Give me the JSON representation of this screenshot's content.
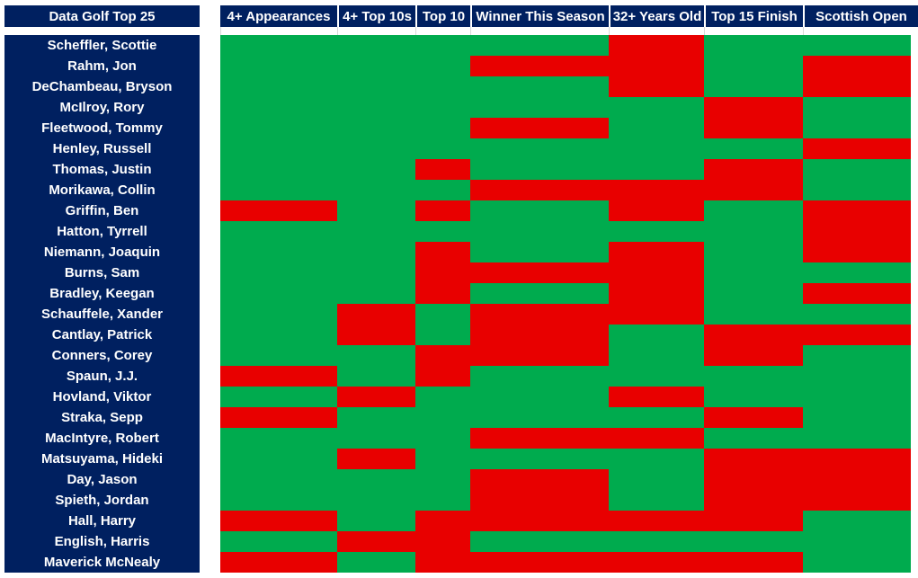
{
  "chart_data": {
    "type": "heatmap",
    "title": "Data Golf Top 25",
    "columns": [
      "4+ Appearances",
      "4+ Top 10s",
      "Top 10",
      "Winner This Season",
      "32+ Years Old",
      "Top 15 Finish",
      "Scottish Open"
    ],
    "rows": [
      "Scheffler, Scottie",
      "Rahm, Jon",
      "DeChambeau, Bryson",
      "McIlroy, Rory",
      "Fleetwood, Tommy",
      "Henley, Russell",
      "Thomas, Justin",
      "Morikawa, Collin",
      "Griffin, Ben",
      "Hatton, Tyrrell",
      "Niemann, Joaquin",
      "Burns, Sam",
      "Bradley, Keegan",
      "Schauffele, Xander",
      "Cantlay, Patrick",
      "Conners, Corey",
      "Spaun, J.J.",
      "Hovland, Viktor",
      "Straka, Sepp",
      "MacIntyre, Robert",
      "Matsuyama, Hideki",
      "Day, Jason",
      "Spieth, Jordan",
      "Hall, Harry",
      "English, Harris",
      "Maverick McNealy"
    ],
    "legend": {
      "0": "meets criterion (green)",
      "1": "fails criterion (red)"
    },
    "colors": {
      "pass": "#00AB4E",
      "fail": "#E80000",
      "header": "#002060"
    },
    "values": [
      [
        0,
        0,
        0,
        0,
        1,
        0,
        0
      ],
      [
        0,
        0,
        0,
        1,
        1,
        0,
        1
      ],
      [
        0,
        0,
        0,
        0,
        1,
        0,
        1
      ],
      [
        0,
        0,
        0,
        0,
        0,
        1,
        0
      ],
      [
        0,
        0,
        0,
        1,
        0,
        1,
        0
      ],
      [
        0,
        0,
        0,
        0,
        0,
        0,
        1
      ],
      [
        0,
        0,
        1,
        0,
        0,
        1,
        0
      ],
      [
        0,
        0,
        0,
        1,
        1,
        1,
        0
      ],
      [
        1,
        0,
        1,
        0,
        1,
        0,
        1
      ],
      [
        0,
        0,
        0,
        0,
        0,
        0,
        1
      ],
      [
        0,
        0,
        1,
        0,
        1,
        0,
        1
      ],
      [
        0,
        0,
        1,
        1,
        1,
        0,
        0
      ],
      [
        0,
        0,
        1,
        0,
        1,
        0,
        1
      ],
      [
        0,
        1,
        0,
        1,
        1,
        0,
        0
      ],
      [
        0,
        1,
        0,
        1,
        0,
        1,
        1
      ],
      [
        0,
        0,
        1,
        1,
        0,
        1,
        0
      ],
      [
        1,
        0,
        1,
        0,
        0,
        0,
        0
      ],
      [
        0,
        1,
        0,
        0,
        1,
        0,
        0
      ],
      [
        1,
        0,
        0,
        0,
        0,
        1,
        0
      ],
      [
        0,
        0,
        0,
        1,
        1,
        0,
        0
      ],
      [
        0,
        1,
        0,
        0,
        0,
        1,
        1
      ],
      [
        0,
        0,
        0,
        1,
        0,
        1,
        1
      ],
      [
        0,
        0,
        0,
        1,
        0,
        1,
        1
      ],
      [
        1,
        0,
        1,
        1,
        1,
        1,
        0
      ],
      [
        0,
        1,
        1,
        0,
        0,
        0,
        0
      ],
      [
        1,
        0,
        1,
        1,
        1,
        1,
        0
      ]
    ]
  }
}
